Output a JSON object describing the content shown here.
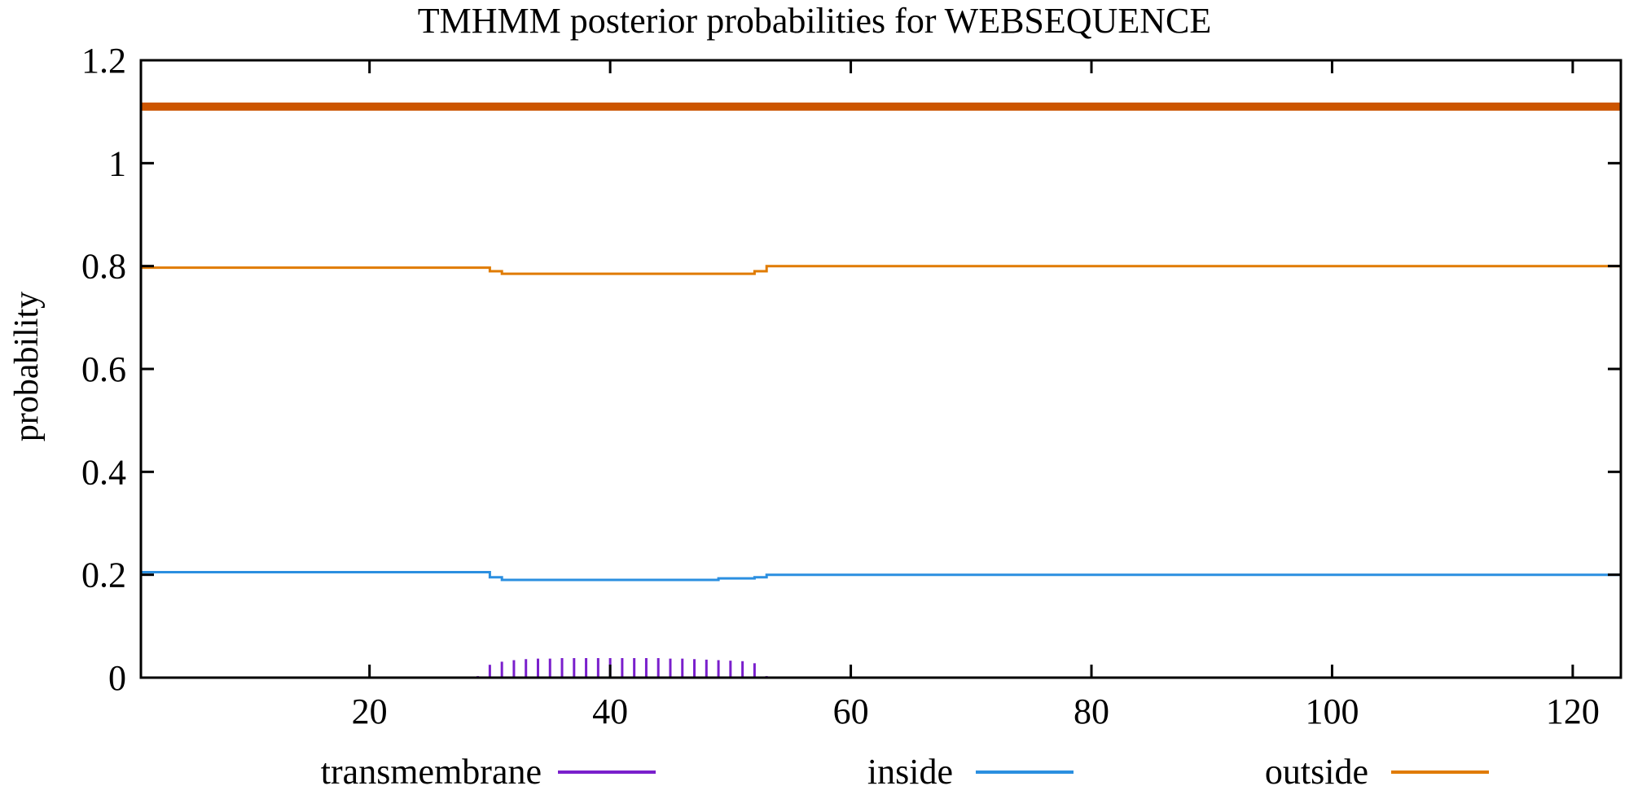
{
  "chart_data": {
    "type": "line",
    "title": "TMHMM posterior probabilities for WEBSEQUENCE",
    "xlabel": "",
    "ylabel": "probability",
    "xlim": [
      1,
      124
    ],
    "ylim": [
      0,
      1.2
    ],
    "xticks": [
      20,
      40,
      60,
      80,
      100,
      120
    ],
    "yticks": [
      0,
      0.2,
      0.4,
      0.6,
      0.8,
      1,
      1.2
    ],
    "grid": false,
    "legend_position": "bottom",
    "colors": {
      "transmembrane": "#7a1fcc",
      "inside": "#2b8fe0",
      "outside": "#e07b00",
      "topology": "#cc5500"
    },
    "topology_band": {
      "y": 1.11,
      "x_start": 1,
      "x_end": 124,
      "label": "outside"
    },
    "series": [
      {
        "name": "outside",
        "style": "line",
        "points": [
          [
            1,
            0.797
          ],
          [
            29,
            0.797
          ],
          [
            30,
            0.79
          ],
          [
            31,
            0.785
          ],
          [
            51,
            0.785
          ],
          [
            52,
            0.79
          ],
          [
            53,
            0.8
          ],
          [
            124,
            0.8
          ]
        ]
      },
      {
        "name": "inside",
        "style": "line",
        "points": [
          [
            1,
            0.205
          ],
          [
            29,
            0.205
          ],
          [
            30,
            0.195
          ],
          [
            31,
            0.19
          ],
          [
            48,
            0.19
          ],
          [
            49,
            0.193
          ],
          [
            52,
            0.195
          ],
          [
            53,
            0.2
          ],
          [
            124,
            0.2
          ]
        ]
      },
      {
        "name": "transmembrane",
        "style": "impulse",
        "x": [
          29,
          30,
          31,
          32,
          33,
          34,
          35,
          36,
          37,
          38,
          39,
          40,
          41,
          42,
          43,
          44,
          45,
          46,
          47,
          48,
          49,
          50,
          51,
          52,
          53,
          54
        ],
        "values": [
          0.003,
          0.025,
          0.031,
          0.034,
          0.036,
          0.037,
          0.037,
          0.038,
          0.038,
          0.038,
          0.038,
          0.038,
          0.038,
          0.038,
          0.038,
          0.038,
          0.037,
          0.037,
          0.036,
          0.035,
          0.034,
          0.033,
          0.032,
          0.028,
          0.003,
          0.002
        ]
      }
    ],
    "legend": [
      {
        "name": "transmembrane",
        "label": "transmembrane"
      },
      {
        "name": "inside",
        "label": "inside"
      },
      {
        "name": "outside",
        "label": "outside"
      }
    ]
  }
}
